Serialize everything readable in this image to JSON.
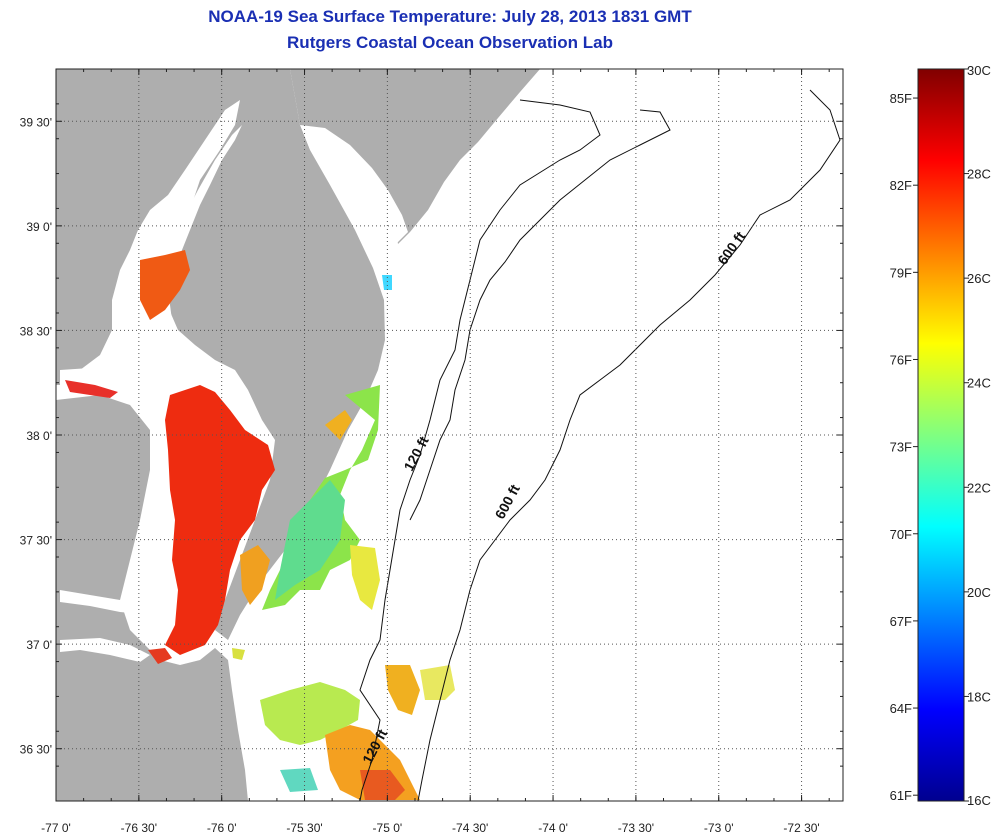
{
  "header": {
    "title": "NOAA-19 Sea Surface Temperature:  July 28, 2013 1831 GMT",
    "subtitle": "Rutgers Coastal Ocean Observation Lab"
  },
  "map": {
    "lon_range": [
      -77.0,
      -72.25
    ],
    "lat_range": [
      36.25,
      39.75
    ],
    "lon_ticks": [
      {
        "value": -77.0,
        "label": "-77 0'"
      },
      {
        "value": -76.5,
        "label": "-76 30'"
      },
      {
        "value": -76.0,
        "label": "-76 0'"
      },
      {
        "value": -75.5,
        "label": "-75 30'"
      },
      {
        "value": -75.0,
        "label": "-75 0'"
      },
      {
        "value": -74.5,
        "label": "-74 30'"
      },
      {
        "value": -74.0,
        "label": "-74 0'"
      },
      {
        "value": -73.5,
        "label": "-73 30'"
      },
      {
        "value": -73.0,
        "label": "-73 0'"
      },
      {
        "value": -72.5,
        "label": "-72 30'"
      }
    ],
    "lat_ticks": [
      {
        "value": 39.5,
        "label": "39 30'"
      },
      {
        "value": 39.0,
        "label": "39 0'"
      },
      {
        "value": 38.5,
        "label": "38 30'"
      },
      {
        "value": 38.0,
        "label": "38 0'"
      },
      {
        "value": 37.5,
        "label": "37 30'"
      },
      {
        "value": 37.0,
        "label": "37 0'"
      },
      {
        "value": 36.5,
        "label": "36 30'"
      }
    ],
    "grid": true,
    "land_color": "#aeaeae",
    "contour_labels": [
      {
        "text": "120 ft",
        "lon": -74.8,
        "lat": 37.9,
        "angle": -62
      },
      {
        "text": "600 ft",
        "lon": -74.25,
        "lat": 37.67,
        "angle": -62
      },
      {
        "text": "600 ft",
        "lon": -72.9,
        "lat": 38.88,
        "angle": -55
      },
      {
        "text": "120 ft",
        "lon": -75.05,
        "lat": 36.5,
        "angle": -62
      }
    ]
  },
  "colorbar": {
    "min_c": 16,
    "max_c": 30,
    "celsius_labels": [
      {
        "value": 30,
        "label": "30C"
      },
      {
        "value": 28,
        "label": "28C"
      },
      {
        "value": 26,
        "label": "26C"
      },
      {
        "value": 24,
        "label": "24C"
      },
      {
        "value": 22,
        "label": "22C"
      },
      {
        "value": 20,
        "label": "20C"
      },
      {
        "value": 18,
        "label": "18C"
      },
      {
        "value": 16,
        "label": "16C"
      }
    ],
    "fahrenheit_labels": [
      {
        "value": 85,
        "label": "85F"
      },
      {
        "value": 82,
        "label": "82F"
      },
      {
        "value": 79,
        "label": "79F"
      },
      {
        "value": 76,
        "label": "76F"
      },
      {
        "value": 73,
        "label": "73F"
      },
      {
        "value": 70,
        "label": "70F"
      },
      {
        "value": 67,
        "label": "67F"
      },
      {
        "value": 64,
        "label": "64F"
      },
      {
        "value": 61,
        "label": "61F"
      }
    ],
    "colors": [
      "#00008f",
      "#0000ff",
      "#0080ff",
      "#00ffff",
      "#80ff80",
      "#ffff00",
      "#ff8000",
      "#ff0000",
      "#800000"
    ]
  }
}
